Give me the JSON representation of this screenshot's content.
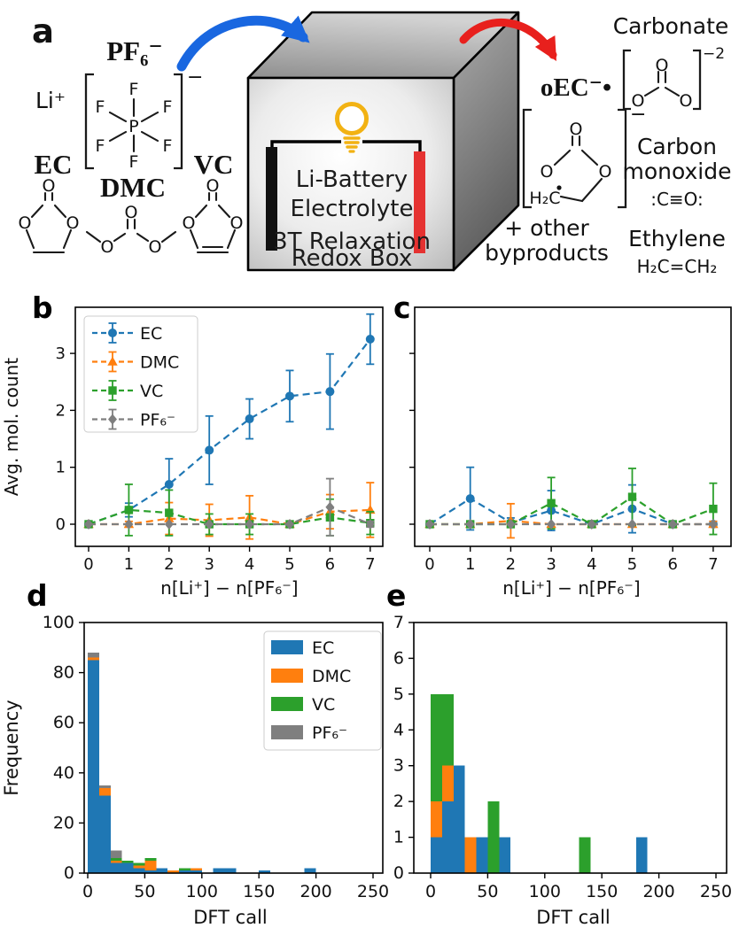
{
  "colors": {
    "ec": "#1f77b4",
    "dmc": "#ff7f0e",
    "vc": "#2ca02c",
    "pf6": "#7f7f7f",
    "ec_label": "#1c7ad1",
    "dmc_label": "#eca12a",
    "vc_label": "#12b169",
    "pf6_label": "#9aa0a6",
    "blue_arrow": "#1967e0",
    "red_arrow": "#e8201d",
    "electrode_red": "#e53231",
    "electrode_black": "#111111",
    "bulb": "#f2b213",
    "byproducts_text": "#f02b24"
  },
  "panel_a": {
    "label": "a",
    "reactants": {
      "li": "Li⁺",
      "pf6": "PF₆⁻",
      "pf6_charge": "−",
      "ec": "EC",
      "dmc": "DMC",
      "vc": "VC"
    },
    "box": {
      "line1": "Li-Battery",
      "line2": "Electrolyte",
      "line3": "3T Relaxation",
      "line4": "Redox Box"
    },
    "products": {
      "oec": "oEC⁻•",
      "oec_charge": "−",
      "carbonate": "Carbonate",
      "carbonate_charge": "−2",
      "carbon_monoxide_1": "Carbon",
      "carbon_monoxide_2": "monoxide",
      "carbon_monoxide_formula": ":C≡O:",
      "ethylene": "Ethylene",
      "ethylene_formula": "H₂C=CH₂",
      "byproducts_1": "+ other",
      "byproducts_2": "byproducts"
    },
    "atoms": {
      "o": "O",
      "f": "F",
      "p": "P",
      "h2c": "H₂C"
    }
  },
  "chart_data": [
    {
      "id": "b",
      "type": "line",
      "panel_label": "b",
      "xlabel": "n[Li⁺] − n[PF₆⁻]",
      "ylabel": "Avg. mol. count",
      "x": [
        0,
        1,
        2,
        3,
        4,
        5,
        6,
        7
      ],
      "yticks": [
        0,
        1,
        2,
        3
      ],
      "ylim": [
        -0.4,
        3.85
      ],
      "show_legend": true,
      "legend_position": "upper-left",
      "series": [
        {
          "name": "EC",
          "color": "#1f77b4",
          "marker": "o",
          "values": [
            0,
            0.25,
            0.7,
            1.3,
            1.85,
            2.25,
            2.33,
            3.25
          ],
          "errors": [
            0.03,
            0.12,
            0.45,
            0.6,
            0.35,
            0.45,
            0.66,
            0.44
          ]
        },
        {
          "name": "DMC",
          "color": "#ff7f0e",
          "marker": "^",
          "values": [
            0,
            0,
            0.1,
            0.07,
            0.12,
            0,
            0.22,
            0.25
          ],
          "errors": [
            0.02,
            0.05,
            0.28,
            0.28,
            0.38,
            0.03,
            0.3,
            0.48
          ]
        },
        {
          "name": "VC",
          "color": "#2ca02c",
          "marker": "s",
          "values": [
            0,
            0.25,
            0.2,
            0,
            0,
            0,
            0.12,
            0.02
          ],
          "errors": [
            0.02,
            0.45,
            0.4,
            0.18,
            0.18,
            0.03,
            0.32,
            0.2
          ]
        },
        {
          "name": "PF₆⁻",
          "color": "#7f7f7f",
          "marker": "D",
          "values": [
            0,
            0,
            0,
            0,
            0,
            0,
            0.3,
            0
          ],
          "errors": [
            0.02,
            0.03,
            0.03,
            0.03,
            0.03,
            0.03,
            0.5,
            0.05
          ]
        }
      ]
    },
    {
      "id": "c",
      "type": "line",
      "panel_label": "c",
      "xlabel": "n[Li⁺] − n[PF₆⁻]",
      "ylabel": "",
      "x": [
        0,
        1,
        2,
        3,
        4,
        5,
        6,
        7
      ],
      "yticks": [
        0,
        1,
        2,
        3
      ],
      "ylim": [
        -0.4,
        3.85
      ],
      "show_legend": false,
      "series": [
        {
          "name": "EC",
          "color": "#1f77b4",
          "marker": "o",
          "values": [
            0,
            0.45,
            0.03,
            0.24,
            0,
            0.27,
            0,
            0
          ],
          "errors": [
            0.02,
            0.55,
            0.08,
            0.35,
            0.02,
            0.42,
            0.02,
            0.05
          ]
        },
        {
          "name": "DMC",
          "color": "#ff7f0e",
          "marker": "^",
          "values": [
            0,
            0,
            0.06,
            0,
            0,
            0,
            0,
            0
          ],
          "errors": [
            0.02,
            0.02,
            0.3,
            0.03,
            0.02,
            0.03,
            0.02,
            0.05
          ]
        },
        {
          "name": "VC",
          "color": "#2ca02c",
          "marker": "s",
          "values": [
            0,
            0,
            0,
            0.37,
            0,
            0.48,
            0,
            0.27
          ],
          "errors": [
            0.02,
            0.02,
            0.03,
            0.45,
            0.02,
            0.5,
            0.03,
            0.45
          ]
        },
        {
          "name": "PF₆⁻",
          "color": "#7f7f7f",
          "marker": "D",
          "values": [
            0,
            0,
            0,
            0,
            0,
            0,
            0,
            0
          ],
          "errors": [
            0.02,
            0.02,
            0.02,
            0.02,
            0.02,
            0.02,
            0.02,
            0.02
          ]
        }
      ]
    },
    {
      "id": "d",
      "type": "histogram-stacked",
      "panel_label": "d",
      "xlabel": "DFT call",
      "ylabel": "Frequency",
      "bin_width": 10,
      "xticks": [
        0,
        50,
        100,
        150,
        200,
        250
      ],
      "yticks": [
        0,
        20,
        40,
        60,
        80,
        100
      ],
      "show_legend": true,
      "legend_position": "upper-right",
      "series": [
        {
          "name": "EC",
          "color": "#1f77b4"
        },
        {
          "name": "DMC",
          "color": "#ff7f0e"
        },
        {
          "name": "VC",
          "color": "#2ca02c"
        },
        {
          "name": "PF₆⁻",
          "color": "#7f7f7f"
        }
      ],
      "bins": [
        {
          "x": 0,
          "counts": [
            85,
            1,
            0,
            2
          ]
        },
        {
          "x": 10,
          "counts": [
            31,
            3,
            0,
            1
          ]
        },
        {
          "x": 20,
          "counts": [
            4,
            1,
            1,
            3
          ]
        },
        {
          "x": 30,
          "counts": [
            4,
            0,
            1,
            0
          ]
        },
        {
          "x": 40,
          "counts": [
            2,
            1,
            1,
            0
          ]
        },
        {
          "x": 50,
          "counts": [
            1,
            4,
            1,
            0
          ]
        },
        {
          "x": 60,
          "counts": [
            2,
            0,
            0,
            0
          ]
        },
        {
          "x": 70,
          "counts": [
            0,
            1,
            0,
            0
          ]
        },
        {
          "x": 80,
          "counts": [
            1,
            0,
            1,
            0
          ]
        },
        {
          "x": 90,
          "counts": [
            1,
            1,
            0,
            0
          ]
        },
        {
          "x": 110,
          "counts": [
            2,
            0,
            0,
            0
          ]
        },
        {
          "x": 120,
          "counts": [
            2,
            0,
            0,
            0
          ]
        },
        {
          "x": 150,
          "counts": [
            1,
            0,
            0,
            0
          ]
        },
        {
          "x": 190,
          "counts": [
            2,
            0,
            0,
            0
          ]
        }
      ]
    },
    {
      "id": "e",
      "type": "histogram-stacked",
      "panel_label": "e",
      "xlabel": "DFT call",
      "ylabel": "",
      "bin_width": 10,
      "xticks": [
        0,
        50,
        100,
        150,
        200,
        250
      ],
      "yticks": [
        0,
        1,
        2,
        3,
        4,
        5,
        6,
        7
      ],
      "show_legend": false,
      "series": [
        {
          "name": "EC",
          "color": "#1f77b4"
        },
        {
          "name": "DMC",
          "color": "#ff7f0e"
        },
        {
          "name": "VC",
          "color": "#2ca02c"
        },
        {
          "name": "PF₆⁻",
          "color": "#7f7f7f"
        }
      ],
      "bins": [
        {
          "x": 0,
          "counts": [
            1,
            1,
            3,
            0
          ]
        },
        {
          "x": 10,
          "counts": [
            2,
            1,
            2,
            0
          ]
        },
        {
          "x": 20,
          "counts": [
            3,
            0,
            0,
            0
          ]
        },
        {
          "x": 30,
          "counts": [
            0,
            1,
            0,
            0
          ]
        },
        {
          "x": 40,
          "counts": [
            1,
            0,
            0,
            0
          ]
        },
        {
          "x": 50,
          "counts": [
            0,
            0,
            2,
            0
          ]
        },
        {
          "x": 60,
          "counts": [
            1,
            0,
            0,
            0
          ]
        },
        {
          "x": 130,
          "counts": [
            0,
            0,
            1,
            0
          ]
        },
        {
          "x": 180,
          "counts": [
            1,
            0,
            0,
            0
          ]
        }
      ]
    }
  ]
}
